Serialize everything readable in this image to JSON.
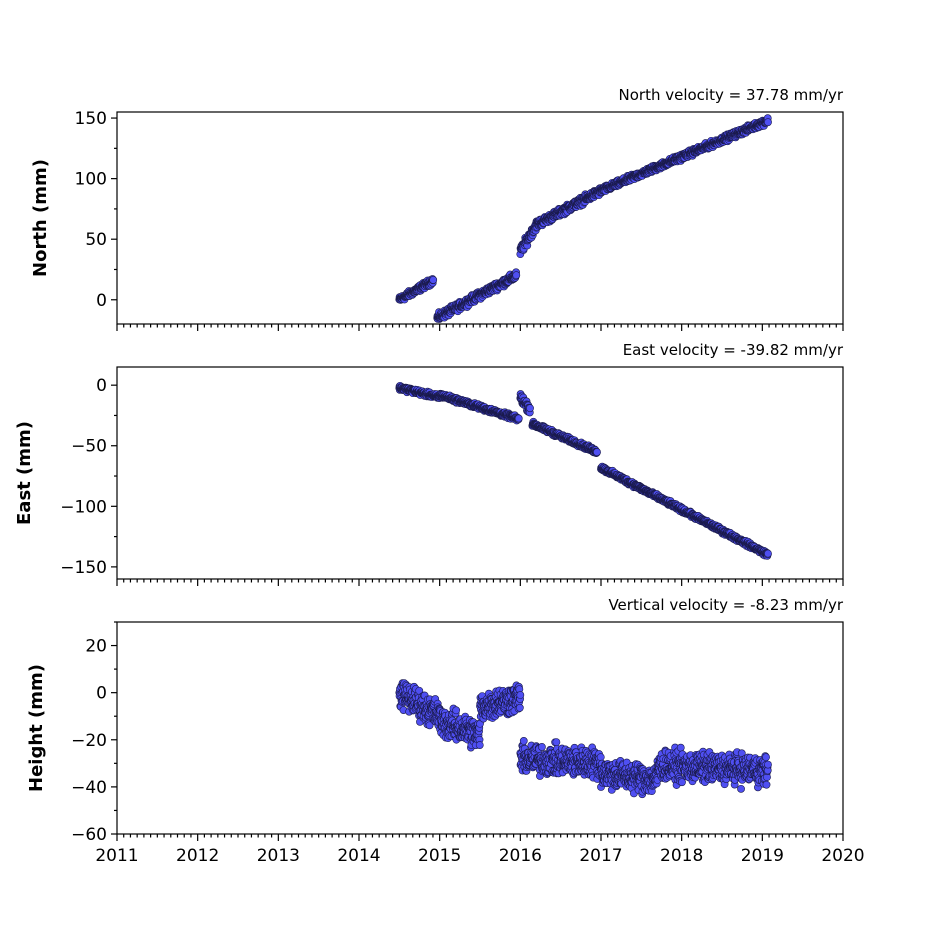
{
  "chart_data": [
    {
      "type": "scatter",
      "title": "North velocity = 37.78 mm/yr",
      "ylabel": "North (mm)",
      "xlim": [
        2011,
        2020
      ],
      "ylim": [
        -20,
        155
      ],
      "yticks": [
        0,
        50,
        100,
        150
      ],
      "yticklabels": [
        "0",
        "50",
        "100",
        "150"
      ],
      "point_color": "#4f4ff2",
      "segments": [
        {
          "x0": 2014.5,
          "x1": 2014.92,
          "y0": 0,
          "y1": 16,
          "noise": 2
        },
        {
          "x0": 2014.97,
          "x1": 2015.95,
          "y0": -15,
          "y1": 20,
          "noise": 2.5
        },
        {
          "x0": 2016.0,
          "x1": 2016.2,
          "y0": 40,
          "y1": 62,
          "noise": 3
        },
        {
          "x0": 2016.2,
          "x1": 2017.0,
          "y0": 62,
          "y1": 90,
          "noise": 2.5
        },
        {
          "x0": 2017.0,
          "x1": 2019.07,
          "y0": 90,
          "y1": 148,
          "noise": 2
        }
      ]
    },
    {
      "type": "scatter",
      "title": "East velocity = -39.82 mm/yr",
      "ylabel": "East (mm)",
      "xlim": [
        2011,
        2020
      ],
      "ylim": [
        -160,
        15
      ],
      "yticks": [
        0,
        -50,
        -100,
        -150
      ],
      "yticklabels": [
        "0",
        "−50",
        "−100",
        "−150"
      ],
      "point_color": "#4f4ff2",
      "segments": [
        {
          "x0": 2014.5,
          "x1": 2015.0,
          "y0": -2,
          "y1": -10,
          "noise": 1.5
        },
        {
          "x0": 2015.0,
          "x1": 2015.98,
          "y0": -8,
          "y1": -28,
          "noise": 1.5
        },
        {
          "x0": 2016.0,
          "x1": 2016.12,
          "y0": -10,
          "y1": -20,
          "noise": 3
        },
        {
          "x0": 2016.15,
          "x1": 2016.95,
          "y0": -32,
          "y1": -55,
          "noise": 1.5
        },
        {
          "x0": 2017.0,
          "x1": 2019.07,
          "y0": -68,
          "y1": -140,
          "noise": 1.5
        }
      ]
    },
    {
      "type": "scatter",
      "title": "Vertical velocity = -8.23 mm/yr",
      "ylabel": "Height (mm)",
      "xlim": [
        2011,
        2020
      ],
      "ylim": [
        -60,
        30
      ],
      "yticks": [
        20,
        0,
        -20,
        -40,
        -60
      ],
      "yticklabels": [
        "20",
        "0",
        "−20",
        "−40",
        "−60"
      ],
      "xticks": [
        2011,
        2012,
        2013,
        2014,
        2015,
        2016,
        2017,
        2018,
        2019,
        2020
      ],
      "xticklabels": [
        "2011",
        "2012",
        "2013",
        "2014",
        "2015",
        "2016",
        "2017",
        "2018",
        "2019",
        "2020"
      ],
      "point_color": "#4f4ff2",
      "segments": [
        {
          "x0": 2014.5,
          "x1": 2015.0,
          "y0": 0,
          "y1": -10,
          "noise": 5
        },
        {
          "x0": 2015.0,
          "x1": 2015.5,
          "y0": -12,
          "y1": -18,
          "noise": 5
        },
        {
          "x0": 2015.5,
          "x1": 2016.0,
          "y0": -6,
          "y1": -2,
          "noise": 5
        },
        {
          "x0": 2016.0,
          "x1": 2017.0,
          "y0": -28,
          "y1": -30,
          "noise": 5
        },
        {
          "x0": 2017.0,
          "x1": 2017.7,
          "y0": -34,
          "y1": -37,
          "noise": 5
        },
        {
          "x0": 2017.7,
          "x1": 2019.07,
          "y0": -31,
          "y1": -33,
          "noise": 5
        }
      ]
    }
  ]
}
